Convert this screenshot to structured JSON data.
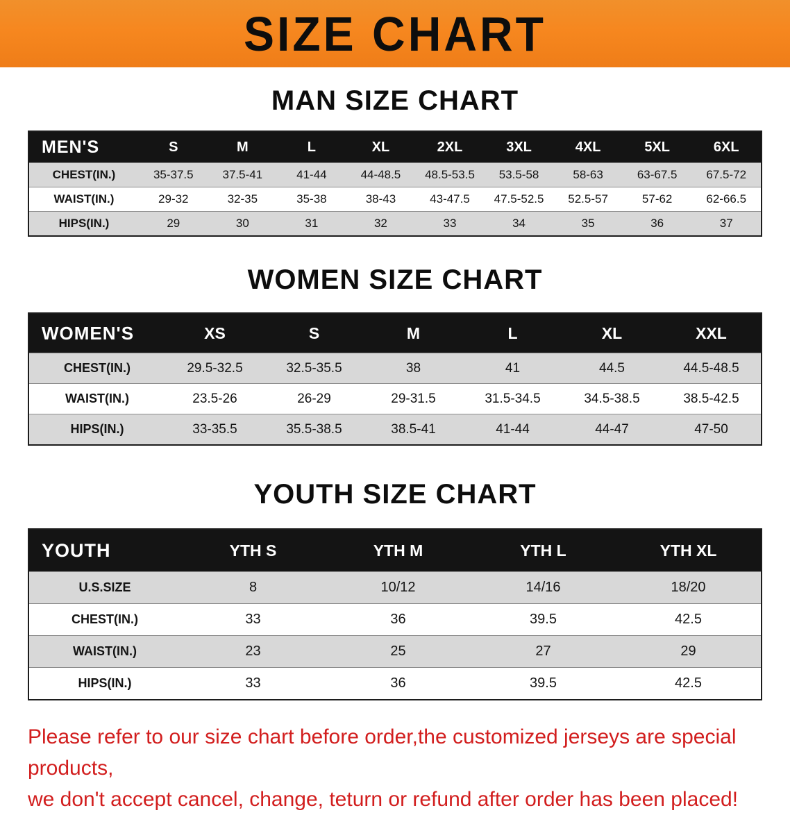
{
  "banner": {
    "title": "SIZE CHART"
  },
  "men": {
    "section_title": "MAN SIZE CHART",
    "header": [
      "MEN'S",
      "S",
      "M",
      "L",
      "XL",
      "2XL",
      "3XL",
      "4XL",
      "5XL",
      "6XL"
    ],
    "rows": [
      [
        "CHEST(IN.)",
        "35-37.5",
        "37.5-41",
        "41-44",
        "44-48.5",
        "48.5-53.5",
        "53.5-58",
        "58-63",
        "63-67.5",
        "67.5-72"
      ],
      [
        "WAIST(IN.)",
        "29-32",
        "32-35",
        "35-38",
        "38-43",
        "43-47.5",
        "47.5-52.5",
        "52.5-57",
        "57-62",
        "62-66.5"
      ],
      [
        "HIPS(IN.)",
        "29",
        "30",
        "31",
        "32",
        "33",
        "34",
        "35",
        "36",
        "37"
      ]
    ]
  },
  "women": {
    "section_title": "WOMEN SIZE CHART",
    "header": [
      "WOMEN'S",
      "XS",
      "S",
      "M",
      "L",
      "XL",
      "XXL"
    ],
    "rows": [
      [
        "CHEST(IN.)",
        "29.5-32.5",
        "32.5-35.5",
        "38",
        "41",
        "44.5",
        "44.5-48.5"
      ],
      [
        "WAIST(IN.)",
        "23.5-26",
        "26-29",
        "29-31.5",
        "31.5-34.5",
        "34.5-38.5",
        "38.5-42.5"
      ],
      [
        "HIPS(IN.)",
        "33-35.5",
        "35.5-38.5",
        "38.5-41",
        "41-44",
        "44-47",
        "47-50"
      ]
    ]
  },
  "youth": {
    "section_title": "YOUTH SIZE CHART",
    "header": [
      "YOUTH",
      "YTH S",
      "YTH M",
      "YTH L",
      "YTH XL"
    ],
    "rows": [
      [
        "U.S.SIZE",
        "8",
        "10/12",
        "14/16",
        "18/20"
      ],
      [
        "CHEST(IN.)",
        "33",
        "36",
        "39.5",
        "42.5"
      ],
      [
        "WAIST(IN.)",
        "23",
        "25",
        "27",
        "29"
      ],
      [
        "HIPS(IN.)",
        "33",
        "36",
        "39.5",
        "42.5"
      ]
    ]
  },
  "footer": {
    "line1": "Please refer to our size chart before order,the customized jerseys are special products,",
    "line2": "we don't accept cancel, change, teturn or refund after order has been placed!"
  },
  "colors": {
    "banner_bg": "#f6871f",
    "header_row_bg": "#141414",
    "stripe_gray": "#d8d8d8",
    "footer_text": "#d21e1e"
  }
}
